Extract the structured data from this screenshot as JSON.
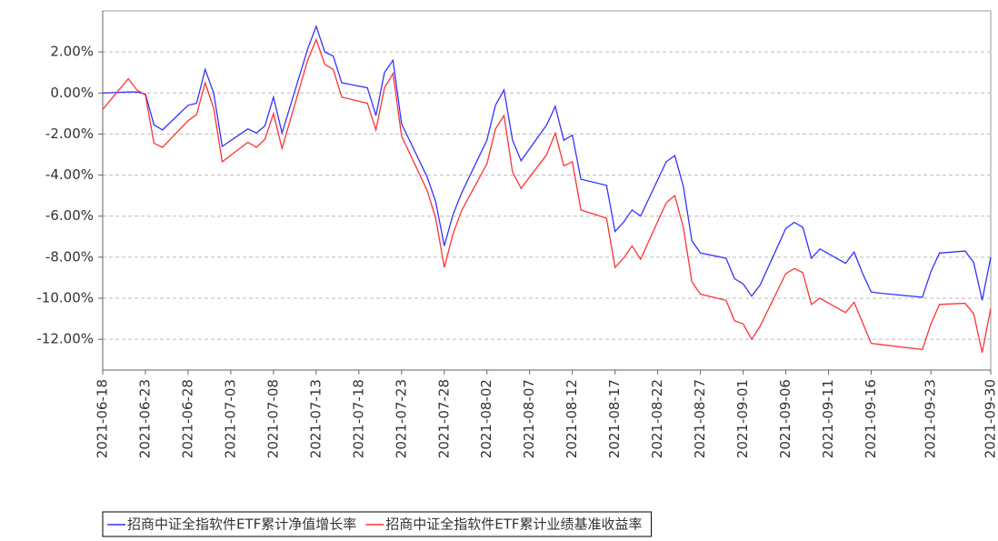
{
  "chart_data": {
    "type": "line",
    "x": [
      "2021-06-18",
      "2021-06-21",
      "2021-06-22",
      "2021-06-23",
      "2021-06-24",
      "2021-06-25",
      "2021-06-28",
      "2021-06-29",
      "2021-06-30",
      "2021-07-01",
      "2021-07-02",
      "2021-07-05",
      "2021-07-06",
      "2021-07-07",
      "2021-07-08",
      "2021-07-09",
      "2021-07-12",
      "2021-07-13",
      "2021-07-14",
      "2021-07-15",
      "2021-07-16",
      "2021-07-19",
      "2021-07-20",
      "2021-07-21",
      "2021-07-22",
      "2021-07-23",
      "2021-07-26",
      "2021-07-27",
      "2021-07-28",
      "2021-07-29",
      "2021-07-30",
      "2021-08-02",
      "2021-08-03",
      "2021-08-04",
      "2021-08-05",
      "2021-08-06",
      "2021-08-09",
      "2021-08-10",
      "2021-08-11",
      "2021-08-12",
      "2021-08-13",
      "2021-08-16",
      "2021-08-17",
      "2021-08-18",
      "2021-08-19",
      "2021-08-20",
      "2021-08-23",
      "2021-08-24",
      "2021-08-25",
      "2021-08-26",
      "2021-08-27",
      "2021-08-30",
      "2021-08-31",
      "2021-09-01",
      "2021-09-02",
      "2021-09-03",
      "2021-09-06",
      "2021-09-07",
      "2021-09-08",
      "2021-09-09",
      "2021-09-10",
      "2021-09-13",
      "2021-09-14",
      "2021-09-15",
      "2021-09-16",
      "2021-09-17",
      "2021-09-22",
      "2021-09-23",
      "2021-09-24",
      "2021-09-27",
      "2021-09-28",
      "2021-09-29",
      "2021-09-30"
    ],
    "series": [
      {
        "name": "招商中证全指软件ETF累计净值增长率",
        "color": "#3333ff",
        "values": [
          0.0,
          0.05,
          0.05,
          -0.05,
          -1.55,
          -1.8,
          -0.6,
          -0.5,
          1.15,
          0.0,
          -2.6,
          -1.75,
          -1.95,
          -1.6,
          -0.2,
          -1.95,
          2.15,
          3.25,
          2.0,
          1.8,
          0.5,
          0.25,
          -1.1,
          1.0,
          1.6,
          -1.5,
          -4.1,
          -5.3,
          -7.45,
          -5.95,
          -4.9,
          -2.3,
          -0.6,
          0.15,
          -2.3,
          -3.3,
          -1.55,
          -0.65,
          -2.3,
          -2.05,
          -4.2,
          -4.5,
          -6.75,
          -6.3,
          -5.7,
          -6.0,
          -3.35,
          -3.05,
          -4.55,
          -7.2,
          -7.8,
          -8.05,
          -9.05,
          -9.3,
          -9.9,
          -9.35,
          -6.6,
          -6.3,
          -6.55,
          -8.05,
          -7.6,
          -8.3,
          -7.75,
          -8.8,
          -9.7,
          -9.75,
          -9.95,
          -8.7,
          -7.8,
          -7.7,
          -8.25,
          -10.1,
          -8.0
        ]
      },
      {
        "name": "招商中证全指软件ETF累计业绩基准收益率",
        "color": "#ff3333",
        "values": [
          -0.8,
          0.7,
          0.15,
          -0.1,
          -2.45,
          -2.65,
          -1.35,
          -1.05,
          0.5,
          -0.75,
          -3.35,
          -2.4,
          -2.65,
          -2.25,
          -1.0,
          -2.7,
          1.6,
          2.6,
          1.4,
          1.15,
          -0.2,
          -0.5,
          -1.8,
          0.25,
          0.95,
          -2.1,
          -4.75,
          -6.1,
          -8.5,
          -6.9,
          -5.75,
          -3.45,
          -1.75,
          -1.1,
          -3.85,
          -4.65,
          -3.0,
          -1.95,
          -3.55,
          -3.35,
          -5.7,
          -6.1,
          -8.5,
          -8.05,
          -7.45,
          -8.1,
          -5.35,
          -5.0,
          -6.55,
          -9.2,
          -9.8,
          -10.1,
          -11.1,
          -11.25,
          -12.0,
          -11.35,
          -8.8,
          -8.55,
          -8.75,
          -10.3,
          -10.0,
          -10.7,
          -10.2,
          -11.2,
          -12.2,
          -12.25,
          -12.5,
          -11.25,
          -10.3,
          -10.25,
          -10.75,
          -12.65,
          -10.5
        ]
      }
    ],
    "xlim": [
      "2021-06-18",
      "2021-09-30"
    ],
    "xticks": [
      "2021-06-18",
      "2021-06-23",
      "2021-06-28",
      "2021-07-03",
      "2021-07-08",
      "2021-07-13",
      "2021-07-18",
      "2021-07-23",
      "2021-07-28",
      "2021-08-02",
      "2021-08-07",
      "2021-08-12",
      "2021-08-17",
      "2021-08-22",
      "2021-08-27",
      "2021-09-01",
      "2021-09-06",
      "2021-09-11",
      "2021-09-16",
      "2021-09-23",
      "2021-09-30"
    ],
    "ylim": [
      -13.5,
      4
    ],
    "yticks": [
      {
        "value": 2,
        "label": "2.00%"
      },
      {
        "value": 0,
        "label": "0.00%"
      },
      {
        "value": -2,
        "label": "-2.00%"
      },
      {
        "value": -4,
        "label": "-4.00%"
      },
      {
        "value": -6,
        "label": "-6.00%"
      },
      {
        "value": -8,
        "label": "-8.00%"
      },
      {
        "value": -10,
        "label": "-10.00%"
      },
      {
        "value": -12,
        "label": "-12.00%"
      }
    ],
    "grid": true,
    "legend": "bottom"
  }
}
